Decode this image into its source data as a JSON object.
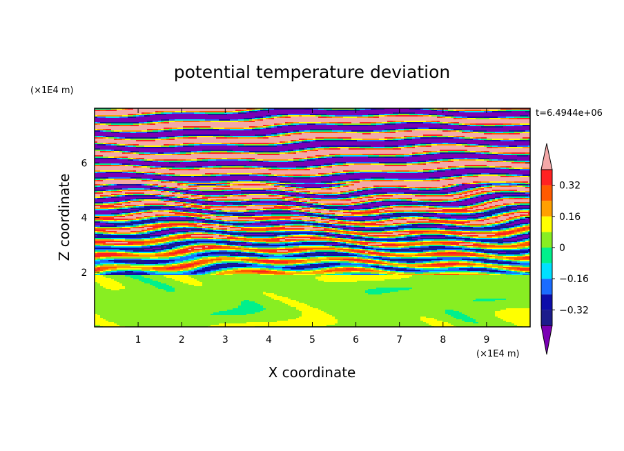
{
  "chart_data": {
    "type": "heatmap",
    "title": "potential temperature deviation",
    "xlabel": "X coordinate",
    "ylabel": "Z coordinate",
    "x_unit": "(×1E4 m)",
    "y_unit": "(×1E4 m)",
    "time_label": "t=6.4944e+06",
    "xlim": [
      0,
      10
    ],
    "ylim": [
      0,
      8
    ],
    "x_ticks": [
      "1",
      "2",
      "3",
      "4",
      "5",
      "6",
      "7",
      "8",
      "9"
    ],
    "y_ticks": [
      "2",
      "4",
      "6"
    ],
    "colorbar": {
      "levels": [
        -0.4,
        -0.32,
        -0.24,
        -0.16,
        -0.08,
        0,
        0.08,
        0.16,
        0.24,
        0.32,
        0.4
      ],
      "tick_labels": [
        "0.32",
        "0.16",
        "0",
        "−0.16",
        "−0.32"
      ],
      "colors": [
        "#1c1c8c",
        "#0d0daa",
        "#1a6cff",
        "#00e0ff",
        "#00f08c",
        "#88ee22",
        "#ffff00",
        "#ffa000",
        "#ff5a00",
        "#ff2222"
      ],
      "under_color": "#7a00b4",
      "over_color": "#f4a8a8"
    },
    "description_regions": [
      {
        "z_range": [
          0,
          1.9
        ],
        "dominant_values": [
          0.0,
          0.08
        ],
        "pattern": "turbulent mixed layer (green shades)"
      },
      {
        "z_range": [
          1.9,
          5.2
        ],
        "dominant_values": [
          -0.4,
          0.4
        ],
        "pattern": "thin multicolored layered filaments"
      },
      {
        "z_range": [
          5.2,
          8
        ],
        "dominant_values": [
          -0.5,
          0.5
        ],
        "pattern": "alternating purple and pink layers"
      }
    ]
  }
}
